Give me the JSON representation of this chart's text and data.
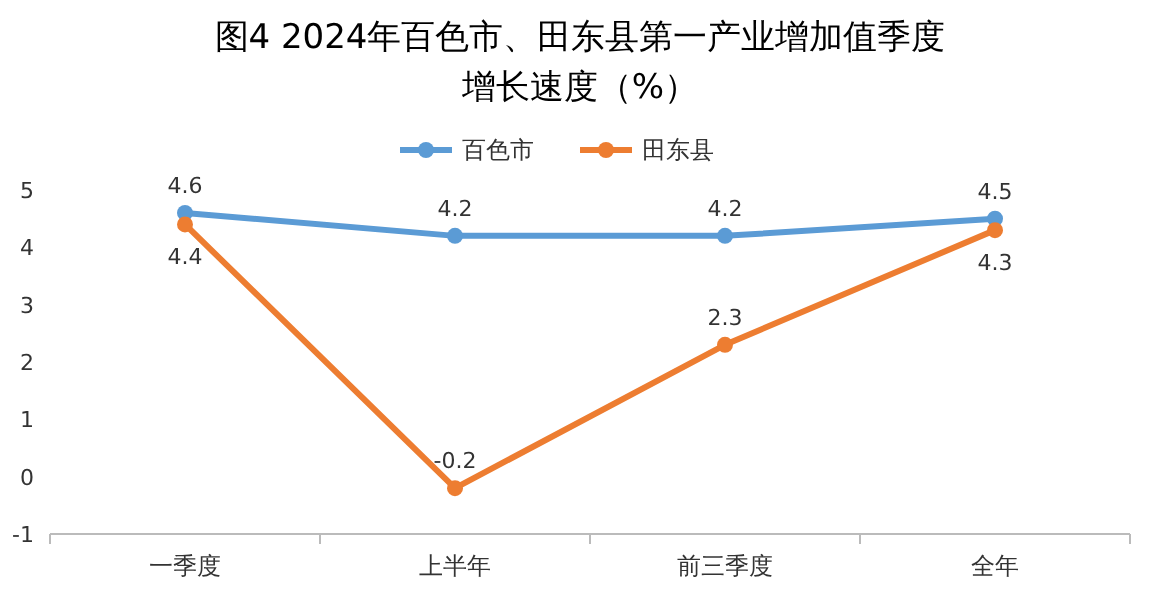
{
  "chart_data": {
    "type": "line",
    "title": "图4  2024年百色市、田东县第一产业增加值季度",
    "subtitle": "增长速度（%）",
    "categories": [
      "一季度",
      "上半年",
      "前三季度",
      "全年"
    ],
    "series": [
      {
        "name": "百色市",
        "color": "#5b9bd5",
        "values": [
          4.6,
          4.2,
          4.2,
          4.5
        ]
      },
      {
        "name": "田东县",
        "color": "#ed7d31",
        "values": [
          4.4,
          -0.2,
          2.3,
          4.3
        ]
      }
    ],
    "ylim": [
      -1,
      5
    ],
    "yticks": [
      -1,
      0,
      1,
      2,
      3,
      4,
      5
    ],
    "grid": false,
    "legend": "top",
    "marker": "circle",
    "line_style": "solid",
    "data_labels": true
  }
}
